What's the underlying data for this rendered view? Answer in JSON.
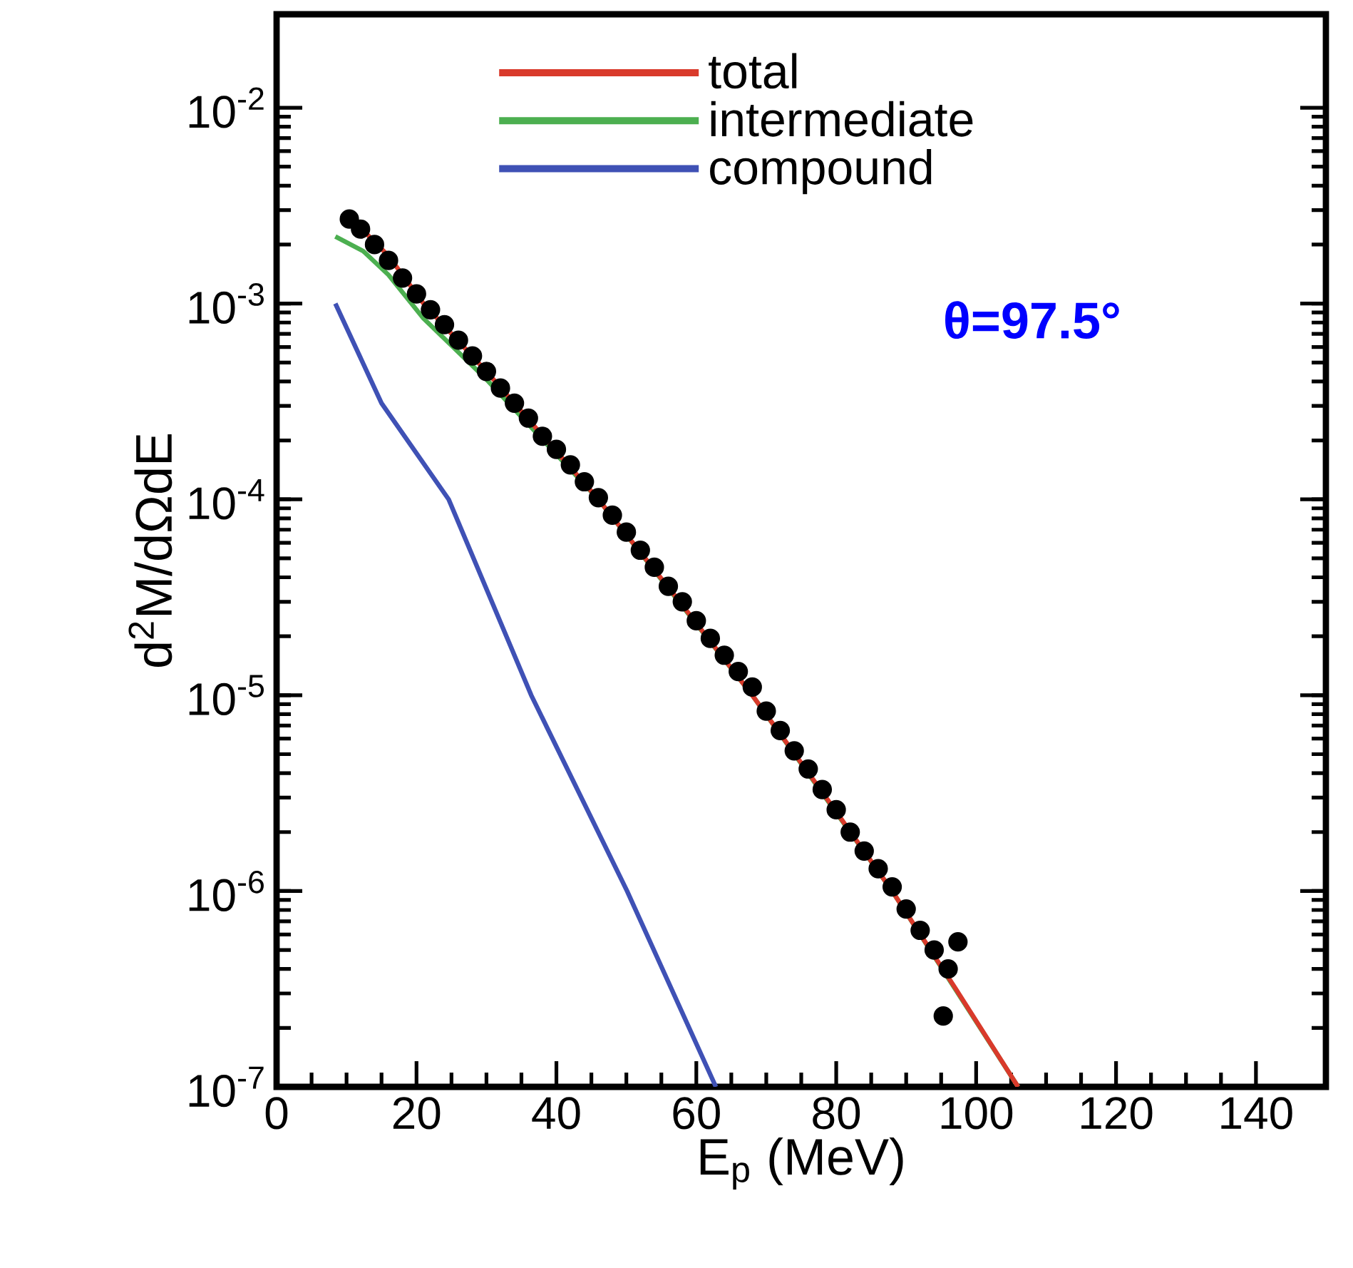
{
  "chart_data": {
    "type": "line",
    "xlabel": "E$_{p}$ (MeV)",
    "ylabel": "d$^{2}$M/dΩdE",
    "log": "y",
    "xlim": [
      0,
      150
    ],
    "ylim": [
      1e-07,
      0.03
    ],
    "xticks": [
      0,
      20,
      40,
      60,
      80,
      100,
      120,
      140
    ],
    "yticks": [
      {
        "value": 1e-07,
        "label": "10$^{-7}$"
      },
      {
        "value": 1e-06,
        "label": "10$^{-6}$"
      },
      {
        "value": 1e-05,
        "label": "10$^{-5}$"
      },
      {
        "value": 0.0001,
        "label": "10$^{-4}$"
      },
      {
        "value": 0.001,
        "label": "10$^{-3}$"
      },
      {
        "value": 0.01,
        "label": "10$^{-2}$"
      }
    ],
    "legend": "top",
    "annotations": [
      "θ=97.5°"
    ],
    "series": [
      {
        "type": "scatter",
        "marker": "circle",
        "color": "#000000",
        "x": [
          10.4,
          12,
          14,
          16,
          18,
          20,
          22,
          24,
          26,
          28,
          30,
          32,
          34,
          36,
          38,
          40,
          42,
          44,
          46,
          48,
          50,
          52,
          54,
          56,
          58,
          60,
          62,
          64,
          66,
          68,
          70,
          72,
          74,
          76,
          78,
          80,
          82,
          84,
          86,
          88,
          90,
          92,
          94,
          95.3,
          96,
          97.4
        ],
        "values": [
          0.0027,
          0.0024,
          0.002,
          0.00166,
          0.00135,
          0.00112,
          0.00093,
          0.00078,
          0.00065,
          0.00054,
          0.00045,
          0.00037,
          0.00031,
          0.00026,
          0.00021,
          0.00018,
          0.00015,
          0.000123,
          0.000102,
          8.3e-05,
          6.8e-05,
          5.5e-05,
          4.5e-05,
          3.6e-05,
          3e-05,
          2.4e-05,
          1.95e-05,
          1.6e-05,
          1.32e-05,
          1.1e-05,
          8.3e-06,
          6.6e-06,
          5.2e-06,
          4.2e-06,
          3.3e-06,
          2.6e-06,
          2e-06,
          1.6e-06,
          1.3e-06,
          1.05e-06,
          8.1e-07,
          6.3e-07,
          5e-07,
          2.3e-07,
          4e-07,
          5.5e-07
        ]
      },
      {
        "name": "total",
        "color": "#d93a2b",
        "x": [
          12.4,
          16,
          21,
          30,
          46,
          57,
          68,
          78,
          88,
          97,
          106
        ],
        "values": [
          0.00236,
          0.00175,
          0.001,
          0.00045,
          0.0001,
          3.2e-05,
          1e-05,
          3.2e-06,
          1e-06,
          3.2e-07,
          1e-07
        ]
      },
      {
        "name": "intermediate",
        "color": "#4caf50",
        "x": [
          8.4,
          12.4,
          16,
          21,
          30,
          46,
          68,
          88,
          106
        ],
        "values": [
          0.0022,
          0.00185,
          0.0014,
          0.00084,
          0.00041,
          0.0001,
          1e-05,
          1e-06,
          1e-07
        ]
      },
      {
        "name": "compound",
        "color": "#3f51b5",
        "x": [
          8.4,
          15,
          24.6,
          36.4,
          50.1,
          62.8
        ],
        "values": [
          0.001,
          0.00031,
          0.0001,
          1e-05,
          1e-06,
          1e-07
        ]
      }
    ]
  }
}
